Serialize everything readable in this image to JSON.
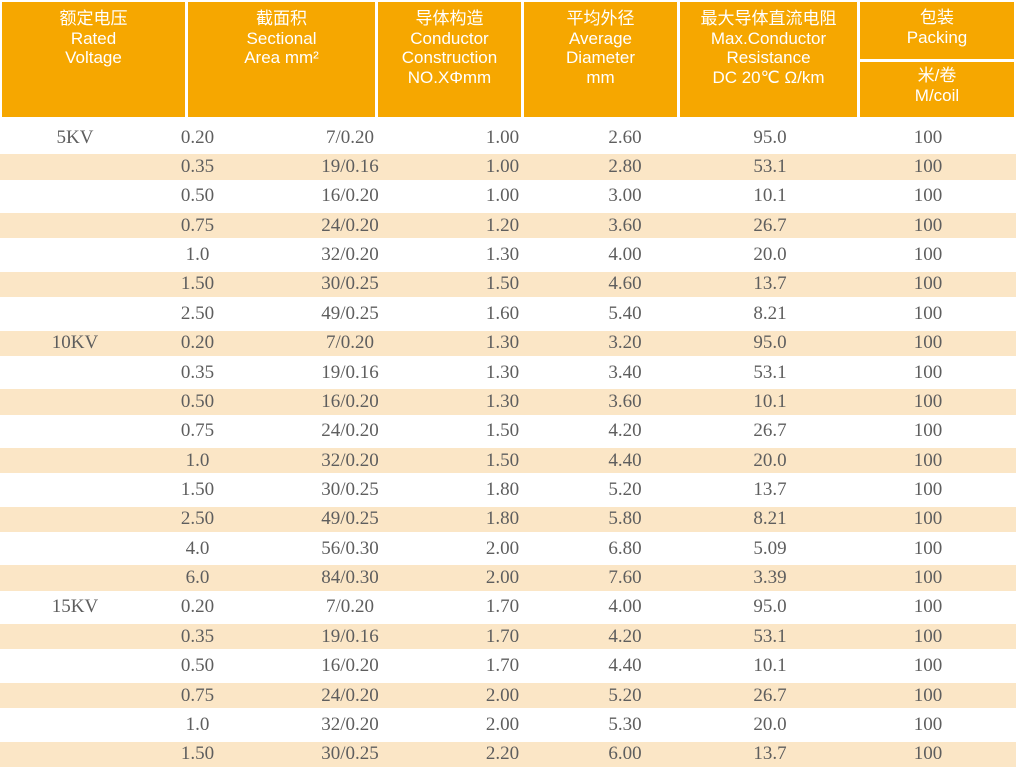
{
  "colors": {
    "header_bg": "#f6a700",
    "stripe_bg": "#fbe6c6",
    "header_text": "#ffffff",
    "body_text": "#5e5e5e"
  },
  "table": {
    "header": {
      "rated_voltage": "额定电压\nRated\nVoltage",
      "sectional_area": "截面积\nSectional\nArea mm²",
      "conductor_construction": "导体构造\nConductor\nConstruction\nNO.XΦmm",
      "average_diameter": "平均外径\nAverage\nDiameter\nmm",
      "max_resistance": "最大导体直流电阻\nMax.Conductor\nResistance\nDC 20℃ Ω/km",
      "packing": "包装\nPacking",
      "packing_unit": "米/卷\nM/coil"
    },
    "rows": [
      [
        "5KV",
        "0.20",
        "7/0.20",
        "1.00",
        "2.60",
        "95.0",
        "100"
      ],
      [
        "",
        "0.35",
        "19/0.16",
        "1.00",
        "2.80",
        "53.1",
        "100"
      ],
      [
        "",
        "0.50",
        "16/0.20",
        "1.00",
        "3.00",
        "10.1",
        "100"
      ],
      [
        "",
        "0.75",
        "24/0.20",
        "1.20",
        "3.60",
        "26.7",
        "100"
      ],
      [
        "",
        "1.0",
        "32/0.20",
        "1.30",
        "4.00",
        "20.0",
        "100"
      ],
      [
        "",
        "1.50",
        "30/0.25",
        "1.50",
        "4.60",
        "13.7",
        "100"
      ],
      [
        "",
        "2.50",
        "49/0.25",
        "1.60",
        "5.40",
        "8.21",
        "100"
      ],
      [
        "10KV",
        "0.20",
        "7/0.20",
        "1.30",
        "3.20",
        "95.0",
        "100"
      ],
      [
        "",
        "0.35",
        "19/0.16",
        "1.30",
        "3.40",
        "53.1",
        "100"
      ],
      [
        "",
        "0.50",
        "16/0.20",
        "1.30",
        "3.60",
        "10.1",
        "100"
      ],
      [
        "",
        "0.75",
        "24/0.20",
        "1.50",
        "4.20",
        "26.7",
        "100"
      ],
      [
        "",
        "1.0",
        "32/0.20",
        "1.50",
        "4.40",
        "20.0",
        "100"
      ],
      [
        "",
        "1.50",
        "30/0.25",
        "1.80",
        "5.20",
        "13.7",
        "100"
      ],
      [
        "",
        "2.50",
        "49/0.25",
        "1.80",
        "5.80",
        "8.21",
        "100"
      ],
      [
        "",
        "4.0",
        "56/0.30",
        "2.00",
        "6.80",
        "5.09",
        "100"
      ],
      [
        "",
        "6.0",
        "84/0.30",
        "2.00",
        "7.60",
        "3.39",
        "100"
      ],
      [
        "15KV",
        "0.20",
        "7/0.20",
        "1.70",
        "4.00",
        "95.0",
        "100"
      ],
      [
        "",
        "0.35",
        "19/0.16",
        "1.70",
        "4.20",
        "53.1",
        "100"
      ],
      [
        "",
        "0.50",
        "16/0.20",
        "1.70",
        "4.40",
        "10.1",
        "100"
      ],
      [
        "",
        "0.75",
        "24/0.20",
        "2.00",
        "5.20",
        "26.7",
        "100"
      ],
      [
        "",
        "1.0",
        "32/0.20",
        "2.00",
        "5.30",
        "20.0",
        "100"
      ],
      [
        "",
        "1.50",
        "30/0.25",
        "2.20",
        "6.00",
        "13.7",
        "100"
      ]
    ]
  }
}
